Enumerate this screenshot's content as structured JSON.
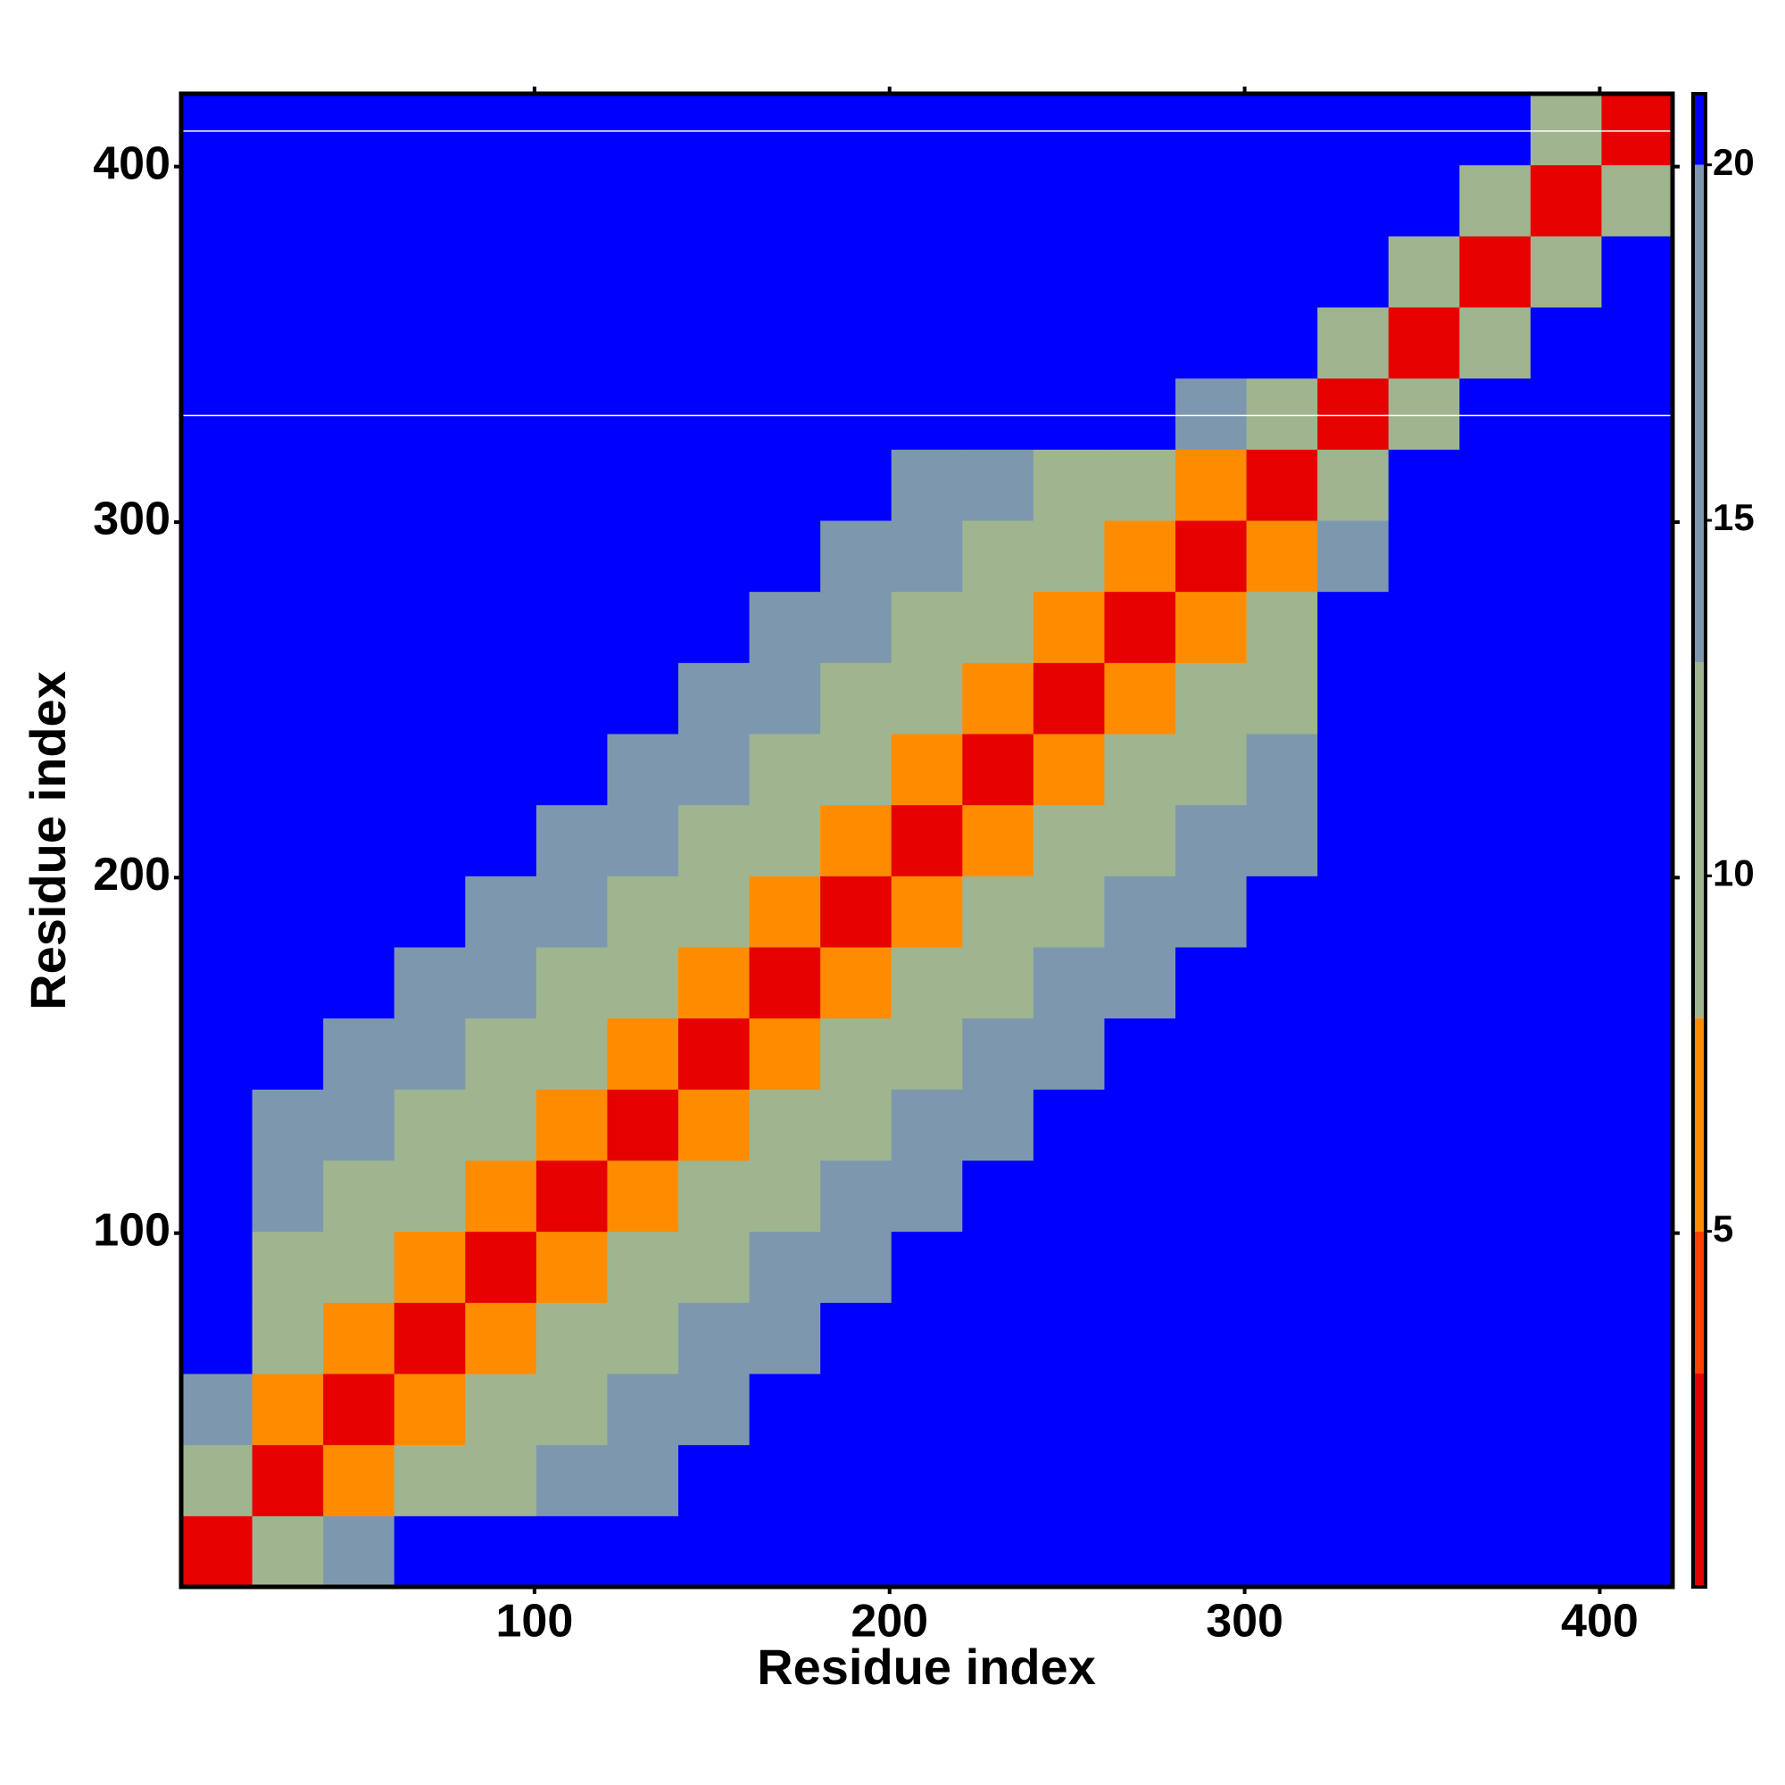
{
  "chart_data": {
    "type": "heatmap",
    "x_label": "Residue index",
    "y_label": "Residue index",
    "xlim": [
      0.5,
      420.5
    ],
    "ylim": [
      0.5,
      420.5
    ],
    "xticks": [
      100,
      200,
      300,
      400
    ],
    "yticks": [
      100,
      200,
      300,
      400
    ],
    "bin_edges": [
      0.5,
      20.5,
      40.5,
      60.5,
      80.5,
      100.5,
      120.5,
      140.5,
      160.5,
      180.5,
      200.5,
      220.5,
      240.5,
      260.5,
      280.5,
      300.5,
      320.5,
      340.5,
      360.5,
      380.5,
      400.5,
      420.5
    ],
    "z": [
      [
        3,
        13,
        16,
        21,
        21,
        21,
        21,
        21,
        21,
        21,
        21,
        21,
        21,
        21,
        21,
        21,
        21,
        21,
        21,
        21,
        21
      ],
      [
        13,
        3,
        7,
        11,
        12,
        14,
        17,
        21,
        21,
        21,
        21,
        21,
        21,
        21,
        21,
        21,
        21,
        21,
        21,
        21,
        21
      ],
      [
        16,
        7,
        3,
        7,
        11,
        12,
        14,
        17,
        21,
        21,
        21,
        21,
        21,
        21,
        21,
        21,
        21,
        21,
        21,
        21,
        21
      ],
      [
        21,
        11,
        7,
        3,
        7,
        11,
        12,
        14,
        17,
        21,
        21,
        21,
        21,
        21,
        21,
        21,
        21,
        21,
        21,
        21,
        21
      ],
      [
        21,
        12,
        11,
        7,
        3,
        7,
        11,
        12,
        14,
        17,
        21,
        21,
        21,
        21,
        21,
        21,
        21,
        21,
        21,
        21,
        21
      ],
      [
        21,
        14,
        12,
        11,
        7,
        3,
        7,
        11,
        12,
        14,
        17,
        21,
        21,
        21,
        21,
        21,
        21,
        21,
        21,
        21,
        21
      ],
      [
        21,
        17,
        14,
        12,
        11,
        7,
        3,
        7,
        11,
        12,
        14,
        17,
        21,
        21,
        21,
        21,
        21,
        21,
        21,
        21,
        21
      ],
      [
        21,
        21,
        17,
        14,
        12,
        11,
        7,
        3,
        7,
        11,
        12,
        14,
        17,
        21,
        21,
        21,
        21,
        21,
        21,
        21,
        21
      ],
      [
        21,
        21,
        21,
        17,
        14,
        12,
        11,
        7,
        3,
        7,
        11,
        12,
        14,
        17,
        21,
        21,
        21,
        21,
        21,
        21,
        21
      ],
      [
        21,
        21,
        21,
        21,
        17,
        14,
        12,
        11,
        7,
        3,
        7,
        11,
        12,
        14,
        17,
        21,
        21,
        21,
        21,
        21,
        21
      ],
      [
        21,
        21,
        21,
        21,
        21,
        17,
        14,
        12,
        11,
        7,
        3,
        7,
        11,
        12,
        14,
        17,
        21,
        21,
        21,
        21,
        21
      ],
      [
        21,
        21,
        21,
        21,
        21,
        21,
        17,
        14,
        12,
        11,
        7,
        3,
        7,
        11,
        12,
        14,
        21,
        21,
        21,
        21,
        21
      ],
      [
        21,
        21,
        21,
        21,
        21,
        21,
        21,
        17,
        14,
        12,
        11,
        7,
        3,
        7,
        11,
        12,
        21,
        21,
        21,
        21,
        21
      ],
      [
        21,
        21,
        21,
        21,
        21,
        21,
        21,
        21,
        17,
        14,
        12,
        11,
        7,
        3,
        7,
        11,
        21,
        21,
        21,
        21,
        21
      ],
      [
        21,
        21,
        21,
        21,
        21,
        21,
        21,
        21,
        21,
        17,
        14,
        12,
        11,
        7,
        3,
        7,
        16,
        21,
        21,
        21,
        21
      ],
      [
        21,
        21,
        21,
        21,
        21,
        21,
        21,
        21,
        21,
        21,
        17,
        14,
        12,
        11,
        7,
        3,
        13,
        21,
        21,
        21,
        21
      ],
      [
        21,
        21,
        21,
        21,
        21,
        21,
        21,
        21,
        21,
        21,
        21,
        21,
        21,
        21,
        16,
        13,
        3,
        13,
        21,
        21,
        21
      ],
      [
        21,
        21,
        21,
        21,
        21,
        21,
        21,
        21,
        21,
        21,
        21,
        21,
        21,
        21,
        21,
        21,
        13,
        3,
        13,
        21,
        21
      ],
      [
        21,
        21,
        21,
        21,
        21,
        21,
        21,
        21,
        21,
        21,
        21,
        21,
        21,
        21,
        21,
        21,
        21,
        13,
        3,
        13,
        21
      ],
      [
        21,
        21,
        21,
        21,
        21,
        21,
        21,
        21,
        21,
        21,
        21,
        21,
        21,
        21,
        21,
        21,
        21,
        21,
        13,
        3,
        13
      ],
      [
        21,
        21,
        21,
        21,
        21,
        21,
        21,
        21,
        21,
        21,
        21,
        21,
        21,
        21,
        21,
        21,
        21,
        21,
        21,
        13,
        3
      ]
    ],
    "gap_rows": [
      330,
      410
    ],
    "clim": [
      0,
      21
    ],
    "cticks": [
      5,
      10,
      15,
      20
    ],
    "color_edges": [
      0,
      3,
      5,
      8,
      13,
      20,
      21
    ],
    "colors": [
      "#e60000",
      "#ff4000",
      "#ff8c00",
      "#9fb590",
      "#7d98ae",
      "#0000ff"
    ]
  }
}
